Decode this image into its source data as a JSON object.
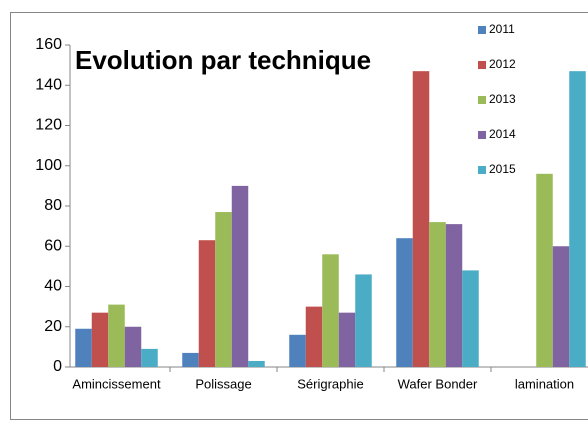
{
  "chart_data": {
    "type": "bar",
    "title": "Evolution par technique",
    "categories": [
      "Amincissement",
      "Polissage",
      "Sérigraphie",
      "Wafer Bonder",
      "lamination"
    ],
    "series": [
      {
        "name": "2011",
        "color": "#4f81bd",
        "values": [
          19,
          7,
          16,
          64,
          null
        ]
      },
      {
        "name": "2012",
        "color": "#c0504d",
        "values": [
          27,
          63,
          30,
          147,
          null
        ]
      },
      {
        "name": "2013",
        "color": "#9bbb59",
        "values": [
          31,
          77,
          56,
          72,
          96
        ]
      },
      {
        "name": "2014",
        "color": "#8064a2",
        "values": [
          20,
          90,
          27,
          71,
          60
        ]
      },
      {
        "name": "2015",
        "color": "#4bacc6",
        "values": [
          9,
          3,
          46,
          48,
          147
        ]
      }
    ],
    "ylim": [
      0,
      160
    ],
    "yticks": [
      0,
      20,
      40,
      60,
      80,
      100,
      120,
      140,
      160
    ],
    "grid": false,
    "legend": "right"
  }
}
